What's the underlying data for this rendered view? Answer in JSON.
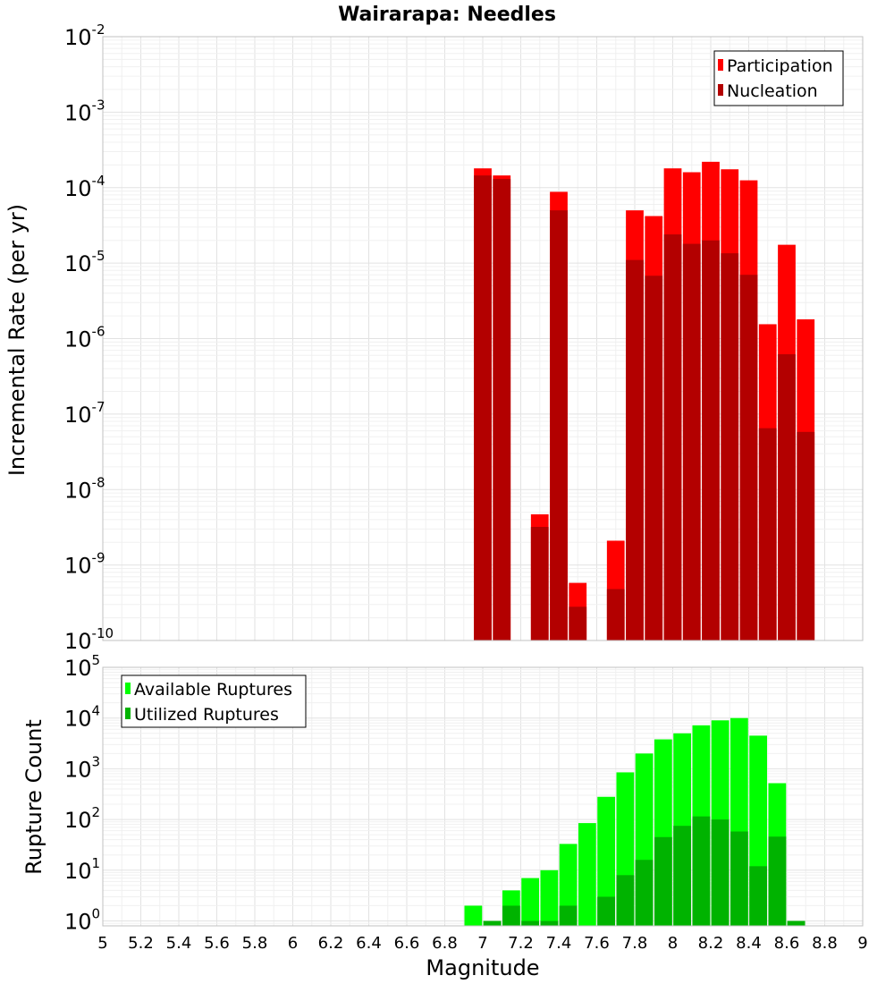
{
  "chart_data": [
    {
      "type": "bar",
      "title": "Wairarapa: Needles",
      "xlabel": "",
      "ylabel": "Incremental Rate (per yr)",
      "yscale": "log",
      "ylim": [
        1e-10,
        0.01
      ],
      "xlim": [
        5,
        9
      ],
      "grid": true,
      "legend_position": "top-right",
      "series": [
        {
          "name": "Participation",
          "color": "#ff0000",
          "x": [
            7.0,
            7.1,
            7.3,
            7.4,
            7.5,
            7.7,
            7.8,
            7.9,
            8.0,
            8.1,
            8.2,
            8.3,
            8.4,
            8.5,
            8.6,
            8.7
          ],
          "values": [
            0.00018,
            0.000145,
            4.7e-09,
            8.8e-05,
            5.8e-10,
            2.1e-09,
            5e-05,
            4.2e-05,
            0.00018,
            0.00016,
            0.00022,
            0.000175,
            0.000125,
            1.55e-06,
            1.75e-05,
            1.8e-06
          ]
        },
        {
          "name": "Nucleation",
          "color": "#b30000",
          "x": [
            7.0,
            7.1,
            7.3,
            7.4,
            7.5,
            7.7,
            7.8,
            7.9,
            8.0,
            8.1,
            8.2,
            8.3,
            8.4,
            8.5,
            8.6,
            8.7
          ],
          "values": [
            0.000145,
            0.00013,
            3.2e-09,
            5e-05,
            2.8e-10,
            4.8e-10,
            1.1e-05,
            6.8e-06,
            2.4e-05,
            1.8e-05,
            2e-05,
            1.35e-05,
            7e-06,
            6.5e-08,
            6.2e-07,
            5.8e-08
          ]
        }
      ]
    },
    {
      "type": "bar",
      "title": "",
      "xlabel": "Magnitude",
      "ylabel": "Rupture Count",
      "yscale": "log",
      "ylim": [
        0.8,
        100000
      ],
      "xlim": [
        5,
        9
      ],
      "grid": true,
      "legend_position": "top-left",
      "xticks": [
        "5",
        "5.2",
        "5.4",
        "5.6",
        "5.8",
        "6",
        "6.2",
        "6.4",
        "6.6",
        "6.8",
        "7",
        "7.2",
        "7.4",
        "7.6",
        "7.8",
        "8",
        "8.2",
        "8.4",
        "8.6",
        "8.8",
        "9"
      ],
      "series": [
        {
          "name": "Available Ruptures",
          "color": "#00ff00",
          "x": [
            6.95,
            7.05,
            7.15,
            7.25,
            7.35,
            7.45,
            7.55,
            7.65,
            7.75,
            7.85,
            7.95,
            8.05,
            8.15,
            8.25,
            8.35,
            8.45,
            8.55,
            8.65
          ],
          "values": [
            2,
            1,
            4,
            7,
            10,
            33,
            85,
            280,
            850,
            2000,
            3800,
            5000,
            7200,
            9000,
            10000,
            4500,
            520,
            1
          ]
        },
        {
          "name": "Utilized Ruptures",
          "color": "#00b300",
          "x": [
            6.95,
            7.05,
            7.15,
            7.25,
            7.35,
            7.45,
            7.55,
            7.65,
            7.75,
            7.85,
            7.95,
            8.05,
            8.15,
            8.25,
            8.35,
            8.45,
            8.55,
            8.65
          ],
          "values": [
            0,
            1,
            2,
            1,
            1,
            2,
            0,
            3,
            8,
            16,
            45,
            75,
            115,
            100,
            58,
            12,
            46,
            1
          ]
        }
      ]
    }
  ],
  "ticks": {
    "top_y": [
      {
        "base": "10",
        "exp": "-2",
        "value": 0.01
      },
      {
        "base": "10",
        "exp": "-3",
        "value": 0.001
      },
      {
        "base": "10",
        "exp": "-4",
        "value": 0.0001
      },
      {
        "base": "10",
        "exp": "-5",
        "value": 1e-05
      },
      {
        "base": "10",
        "exp": "-6",
        "value": 1e-06
      },
      {
        "base": "10",
        "exp": "-7",
        "value": 1e-07
      },
      {
        "base": "10",
        "exp": "-8",
        "value": 1e-08
      },
      {
        "base": "10",
        "exp": "-9",
        "value": 1e-09
      },
      {
        "base": "10",
        "exp": "-10",
        "value": 1e-10
      }
    ],
    "bottom_y": [
      {
        "base": "10",
        "exp": "5",
        "value": 100000
      },
      {
        "base": "10",
        "exp": "4",
        "value": 10000
      },
      {
        "base": "10",
        "exp": "3",
        "value": 1000
      },
      {
        "base": "10",
        "exp": "2",
        "value": 100
      },
      {
        "base": "10",
        "exp": "1",
        "value": 10
      },
      {
        "base": "10",
        "exp": "0",
        "value": 1
      }
    ]
  }
}
